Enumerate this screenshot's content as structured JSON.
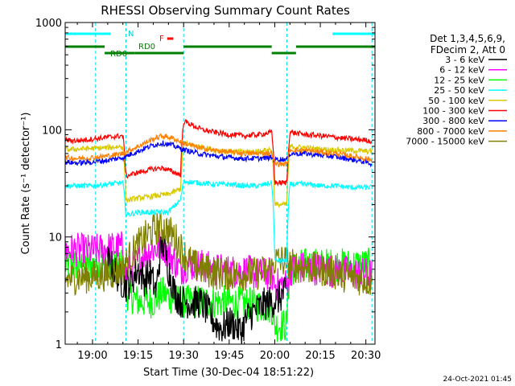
{
  "chart_data": {
    "type": "line",
    "title": "RHESSI Observing Summary Count Rates",
    "xlabel": "Start Time (30-Dec-04 18:51:22)",
    "ylabel": "Count Rate (s⁻¹ detector⁻¹)",
    "yscale": "log",
    "ylim": [
      1,
      1000
    ],
    "xlim_minutes": [
      1131,
      1233
    ],
    "x_ticks": [
      {
        "label": "19:00",
        "minute": 1140
      },
      {
        "label": "19:15",
        "minute": 1155
      },
      {
        "label": "19:30",
        "minute": 1170
      },
      {
        "label": "19:45",
        "minute": 1185
      },
      {
        "label": "20:00",
        "minute": 1200
      },
      {
        "label": "20:15",
        "minute": 1215
      },
      {
        "label": "20:30",
        "minute": 1230
      }
    ],
    "y_ticks": [
      {
        "label": "1",
        "value": 1
      },
      {
        "label": "10",
        "value": 10
      },
      {
        "label": "100",
        "value": 100
      },
      {
        "label": "1000",
        "value": 1000
      }
    ],
    "legend_header": [
      "Det 1,3,4,5,6,9,",
      "FDecim 2, Att 0"
    ],
    "legend_placement": "right",
    "timestamp": "24-Oct-2021 01:45",
    "flag_labels": {
      "night": "N",
      "rd0": "RD0",
      "rd6": "RD6",
      "flare": "F"
    },
    "night_bars": [
      [
        1131,
        1146
      ],
      [
        1219,
        1233
      ]
    ],
    "rd_segments": [
      {
        "from": 1131,
        "to": 1144,
        "level": "upper"
      },
      {
        "from": 1144,
        "to": 1154,
        "level": "lower"
      },
      {
        "from": 1154,
        "to": 1170,
        "level": "lower"
      },
      {
        "from": 1170,
        "to": 1199,
        "level": "upper"
      },
      {
        "from": 1199,
        "to": 1207,
        "level": "lower"
      },
      {
        "from": 1207,
        "to": 1233,
        "level": "upper"
      }
    ],
    "flare_segment": [
      1163,
      1165
    ],
    "night_lines_minutes": [
      1131,
      1141,
      1151,
      1170,
      1204,
      1232
    ],
    "series": [
      {
        "name": "3 - 6 keV",
        "color": "#000000",
        "points": [
          [
            1145,
            6
          ],
          [
            1149,
            4
          ],
          [
            1151,
            3.5
          ],
          [
            1153,
            4
          ],
          [
            1155,
            5
          ],
          [
            1157,
            4
          ],
          [
            1159,
            4.5
          ],
          [
            1161,
            3
          ],
          [
            1162,
            6
          ],
          [
            1163,
            9
          ],
          [
            1164,
            7
          ],
          [
            1165,
            5
          ],
          [
            1167,
            3
          ],
          [
            1169,
            2.5
          ],
          [
            1171,
            2.5
          ],
          [
            1173,
            2.4
          ],
          [
            1175,
            2.5
          ],
          [
            1177,
            2.2
          ],
          [
            1179,
            1.8
          ],
          [
            1181,
            1.5
          ],
          [
            1183,
            1.4
          ],
          [
            1185,
            1.6
          ],
          [
            1187,
            1.5
          ],
          [
            1189,
            1.3
          ],
          [
            1191,
            1.8
          ],
          [
            1193,
            2.0
          ],
          [
            1195,
            2.2
          ],
          [
            1197,
            2.4
          ],
          [
            1199,
            2.5
          ],
          [
            1201,
            2.6
          ],
          [
            1203,
            3.0
          ],
          [
            1204,
            2.8
          ]
        ]
      },
      {
        "name": "6 - 12 keV",
        "color": "#ff00ff",
        "points": [
          [
            1131,
            7.5
          ],
          [
            1135,
            7.6
          ],
          [
            1140,
            7.4
          ],
          [
            1145,
            7.8
          ],
          [
            1149,
            8
          ],
          [
            1150,
            8
          ],
          [
            1151,
            4.5
          ],
          [
            1153,
            5
          ],
          [
            1155,
            6
          ],
          [
            1157,
            7
          ],
          [
            1159,
            7.5
          ],
          [
            1161,
            7.8
          ],
          [
            1163,
            8.5
          ],
          [
            1165,
            7
          ],
          [
            1167,
            6
          ],
          [
            1169,
            5
          ],
          [
            1171,
            5.5
          ],
          [
            1175,
            5.5
          ],
          [
            1180,
            5
          ],
          [
            1185,
            4.8
          ],
          [
            1190,
            4.8
          ],
          [
            1195,
            4.5
          ],
          [
            1199,
            4.5
          ],
          [
            1200,
            3.6
          ],
          [
            1204,
            3.6
          ],
          [
            1205,
            5
          ],
          [
            1210,
            5.2
          ],
          [
            1215,
            5
          ],
          [
            1220,
            4.8
          ],
          [
            1225,
            4.6
          ],
          [
            1230,
            4.5
          ],
          [
            1232,
            4.4
          ]
        ]
      },
      {
        "name": "12 - 25 keV",
        "color": "#00ff00",
        "points": [
          [
            1131,
            5.5
          ],
          [
            1140,
            5.5
          ],
          [
            1150,
            5.5
          ],
          [
            1151,
            3
          ],
          [
            1155,
            2.5
          ],
          [
            1160,
            2.5
          ],
          [
            1163,
            3
          ],
          [
            1165,
            2.8
          ],
          [
            1168,
            2.5
          ],
          [
            1171,
            2.5
          ],
          [
            1180,
            2.5
          ],
          [
            1190,
            2.4
          ],
          [
            1199,
            2.2
          ],
          [
            1200,
            1.5
          ],
          [
            1204,
            1.5
          ],
          [
            1205,
            5
          ],
          [
            1210,
            5.5
          ],
          [
            1220,
            5.5
          ],
          [
            1230,
            5.5
          ],
          [
            1232,
            5.5
          ]
        ]
      },
      {
        "name": "25 - 50 keV",
        "color": "#00ffff",
        "points": [
          [
            1131,
            30
          ],
          [
            1135,
            30
          ],
          [
            1140,
            30
          ],
          [
            1145,
            31
          ],
          [
            1150,
            32
          ],
          [
            1151,
            16
          ],
          [
            1155,
            17
          ],
          [
            1160,
            17
          ],
          [
            1165,
            17
          ],
          [
            1169,
            22
          ],
          [
            1170,
            33
          ],
          [
            1175,
            32
          ],
          [
            1180,
            31
          ],
          [
            1185,
            31
          ],
          [
            1190,
            30
          ],
          [
            1195,
            30
          ],
          [
            1199,
            32
          ],
          [
            1200,
            6
          ],
          [
            1204,
            6
          ],
          [
            1205,
            31
          ],
          [
            1210,
            31
          ],
          [
            1215,
            30
          ],
          [
            1220,
            30
          ],
          [
            1225,
            29
          ],
          [
            1230,
            29
          ],
          [
            1232,
            29
          ]
        ]
      },
      {
        "name": "50 - 100 keV",
        "color": "#d8c800",
        "points": [
          [
            1131,
            65
          ],
          [
            1135,
            66
          ],
          [
            1140,
            67
          ],
          [
            1145,
            68
          ],
          [
            1150,
            70
          ],
          [
            1151,
            22
          ],
          [
            1155,
            23
          ],
          [
            1160,
            24
          ],
          [
            1165,
            25
          ],
          [
            1169,
            28
          ],
          [
            1170,
            75
          ],
          [
            1175,
            70
          ],
          [
            1180,
            65
          ],
          [
            1185,
            63
          ],
          [
            1190,
            62
          ],
          [
            1195,
            63
          ],
          [
            1199,
            66
          ],
          [
            1200,
            20
          ],
          [
            1204,
            20
          ],
          [
            1205,
            70
          ],
          [
            1210,
            68
          ],
          [
            1215,
            66
          ],
          [
            1220,
            65
          ],
          [
            1225,
            64
          ],
          [
            1230,
            63
          ],
          [
            1232,
            63
          ]
        ]
      },
      {
        "name": "100 - 300 keV",
        "color": "#ff0000",
        "points": [
          [
            1131,
            80
          ],
          [
            1135,
            79
          ],
          [
            1140,
            82
          ],
          [
            1145,
            85
          ],
          [
            1150,
            88
          ],
          [
            1151,
            37
          ],
          [
            1155,
            40
          ],
          [
            1160,
            43
          ],
          [
            1163,
            44
          ],
          [
            1165,
            42
          ],
          [
            1169,
            38
          ],
          [
            1170,
            120
          ],
          [
            1173,
            110
          ],
          [
            1176,
            100
          ],
          [
            1180,
            95
          ],
          [
            1185,
            90
          ],
          [
            1190,
            88
          ],
          [
            1195,
            90
          ],
          [
            1199,
            95
          ],
          [
            1200,
            32
          ],
          [
            1204,
            32
          ],
          [
            1205,
            95
          ],
          [
            1210,
            90
          ],
          [
            1215,
            88
          ],
          [
            1220,
            85
          ],
          [
            1225,
            82
          ],
          [
            1230,
            80
          ],
          [
            1232,
            78
          ]
        ]
      },
      {
        "name": "300 - 800 keV",
        "color": "#0000ff",
        "points": [
          [
            1131,
            50
          ],
          [
            1135,
            49
          ],
          [
            1140,
            50
          ],
          [
            1145,
            52
          ],
          [
            1150,
            55
          ],
          [
            1155,
            63
          ],
          [
            1160,
            72
          ],
          [
            1163,
            75
          ],
          [
            1166,
            72
          ],
          [
            1170,
            65
          ],
          [
            1175,
            60
          ],
          [
            1180,
            57
          ],
          [
            1185,
            55
          ],
          [
            1190,
            54
          ],
          [
            1195,
            54
          ],
          [
            1199,
            55
          ],
          [
            1200,
            53
          ],
          [
            1204,
            53
          ],
          [
            1205,
            60
          ],
          [
            1210,
            60
          ],
          [
            1215,
            58
          ],
          [
            1220,
            56
          ],
          [
            1225,
            53
          ],
          [
            1230,
            50
          ],
          [
            1232,
            48
          ]
        ]
      },
      {
        "name": "800 - 7000 keV",
        "color": "#ff8000",
        "points": [
          [
            1131,
            55
          ],
          [
            1135,
            54
          ],
          [
            1140,
            55
          ],
          [
            1145,
            57
          ],
          [
            1150,
            60
          ],
          [
            1155,
            70
          ],
          [
            1160,
            82
          ],
          [
            1163,
            88
          ],
          [
            1166,
            84
          ],
          [
            1170,
            75
          ],
          [
            1175,
            68
          ],
          [
            1180,
            64
          ],
          [
            1185,
            62
          ],
          [
            1190,
            60
          ],
          [
            1195,
            60
          ],
          [
            1199,
            61
          ],
          [
            1200,
            48
          ],
          [
            1204,
            48
          ],
          [
            1205,
            65
          ],
          [
            1210,
            64
          ],
          [
            1215,
            62
          ],
          [
            1220,
            60
          ],
          [
            1225,
            57
          ],
          [
            1230,
            54
          ],
          [
            1232,
            52
          ]
        ]
      },
      {
        "name": "7000 - 15000 keV",
        "color": "#808000",
        "points": [
          [
            1131,
            4
          ],
          [
            1135,
            4.2
          ],
          [
            1140,
            4.3
          ],
          [
            1145,
            4.5
          ],
          [
            1150,
            5
          ],
          [
            1153,
            7
          ],
          [
            1156,
            9
          ],
          [
            1159,
            11
          ],
          [
            1162,
            12.5
          ],
          [
            1164,
            12
          ],
          [
            1167,
            10
          ],
          [
            1170,
            7
          ],
          [
            1173,
            5.5
          ],
          [
            1176,
            5
          ],
          [
            1180,
            4.6
          ],
          [
            1185,
            4.5
          ],
          [
            1190,
            4.5
          ],
          [
            1195,
            4.6
          ],
          [
            1199,
            5
          ],
          [
            1200,
            6
          ],
          [
            1204,
            6
          ],
          [
            1205,
            5.5
          ],
          [
            1210,
            5.2
          ],
          [
            1215,
            5
          ],
          [
            1220,
            4.6
          ],
          [
            1225,
            4.2
          ],
          [
            1230,
            4
          ],
          [
            1232,
            3.8
          ]
        ]
      }
    ]
  }
}
